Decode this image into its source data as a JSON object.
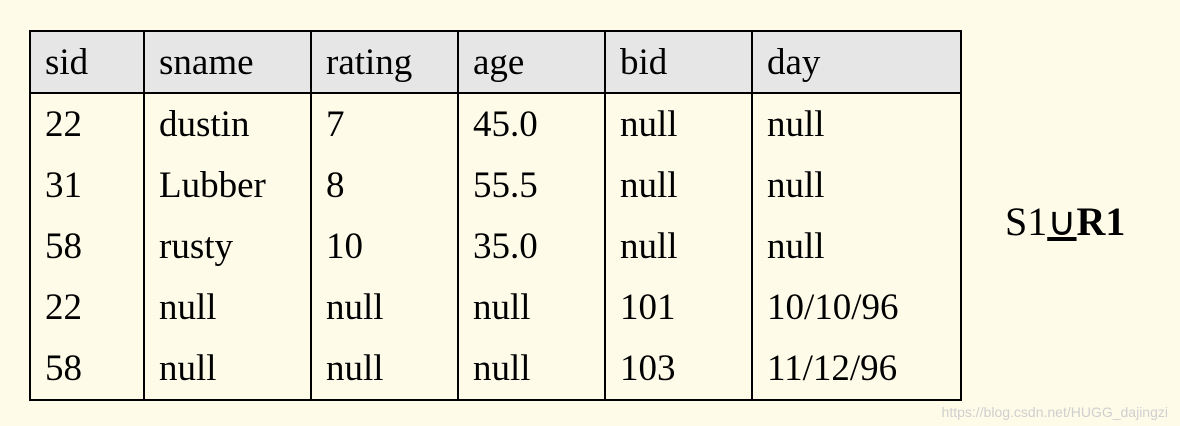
{
  "table": {
    "header": [
      "sid",
      "sname",
      "rating",
      "age",
      "bid",
      "day"
    ],
    "rows": [
      [
        "22",
        "dustin",
        "7",
        "45.0",
        "null",
        "null"
      ],
      [
        "31",
        "Lubber",
        "8",
        "55.5",
        "null",
        "null"
      ],
      [
        "58",
        "rusty",
        "10",
        "35.0",
        "null",
        "null"
      ],
      [
        "22",
        "null",
        "null",
        "null",
        "101",
        "10/10/96"
      ],
      [
        "58",
        "null",
        "null",
        "null",
        "103",
        "11/12/96"
      ]
    ]
  },
  "expression": {
    "left": "S1",
    "operator": "∪",
    "right": "R1"
  },
  "watermark": "https://blog.csdn.net/HUGG_dajingzi"
}
